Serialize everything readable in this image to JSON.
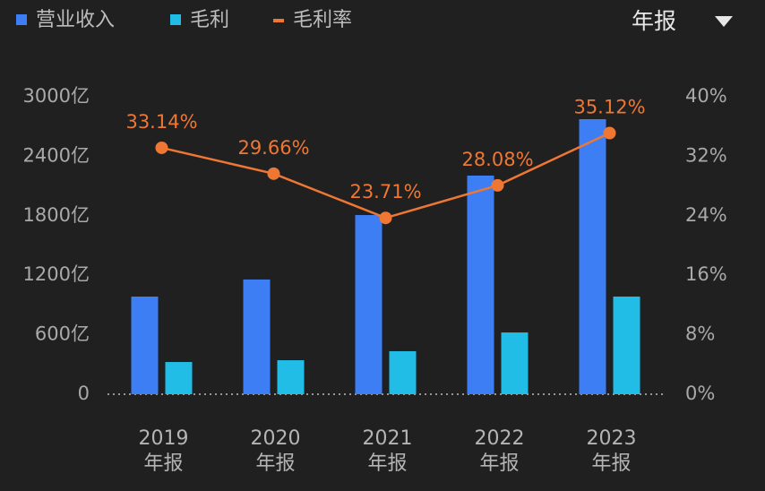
{
  "chart_data": {
    "type": "bar",
    "legend_position": "top-left",
    "categories": [
      "2019\n年报",
      "2020\n年报",
      "2021\n年报",
      "2022\n年报",
      "2023\n年报"
    ],
    "series": [
      {
        "name": "营业收入",
        "color": "#3d7ef5",
        "values": [
          985,
          1157,
          1807,
          2205,
          2774
        ]
      },
      {
        "name": "毛利",
        "color": "#22bde6",
        "values": [
          325,
          343,
          434,
          623,
          985
        ]
      },
      {
        "name": "毛利率",
        "type": "line",
        "axis": "y2",
        "color": "#ee7733",
        "values": [
          33.14,
          29.66,
          23.71,
          28.08,
          35.12
        ],
        "value_labels": [
          "33.14%",
          "29.66%",
          "23.71%",
          "28.08%",
          "35.12%"
        ]
      }
    ],
    "ylim": [
      0,
      3000
    ],
    "yticks": [
      0,
      {
        "value": 600,
        "label": "600亿"
      },
      {
        "value": 1200,
        "label": "1200亿"
      },
      {
        "value": 1800,
        "label": "1800亿"
      },
      {
        "value": 2400,
        "label": "2400亿"
      },
      {
        "value": 3000,
        "label": "3000亿"
      }
    ],
    "y2lim": [
      0,
      40
    ],
    "y2ticks": [
      {
        "value": 0,
        "label": "0%"
      },
      {
        "value": 8,
        "label": "8%"
      },
      {
        "value": 16,
        "label": "16%"
      },
      {
        "value": 24,
        "label": "24%"
      },
      {
        "value": 32,
        "label": "32%"
      },
      {
        "value": 40,
        "label": "40%"
      }
    ]
  },
  "period_selector": "年报"
}
